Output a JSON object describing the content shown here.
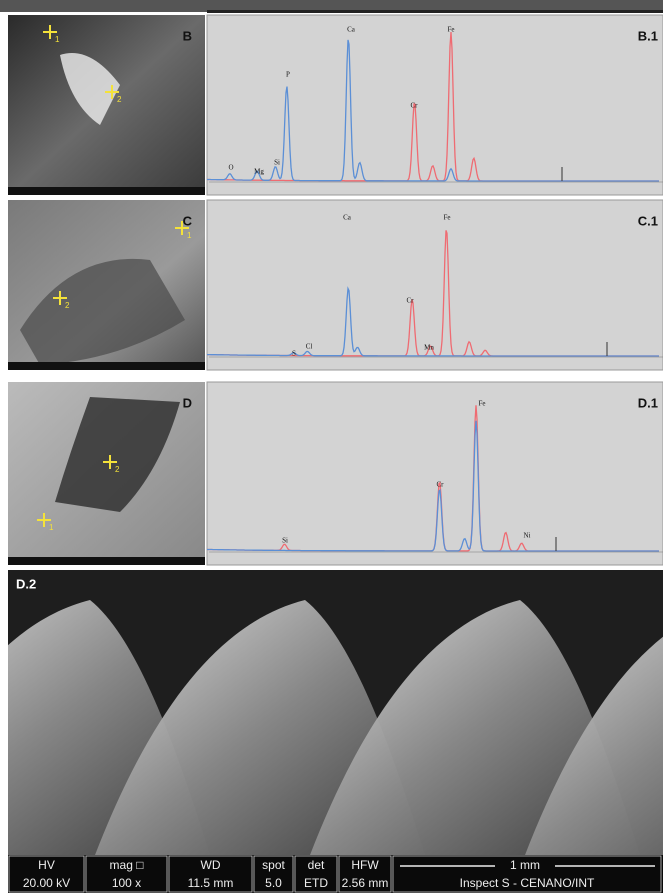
{
  "panels": [
    {
      "label": "B",
      "spectrum_label": "B.1",
      "points": [
        "1",
        "2"
      ],
      "peaks": [
        "O",
        "Mg",
        "Si",
        "P",
        "Ca",
        "Cr",
        "Fe"
      ]
    },
    {
      "label": "C",
      "spectrum_label": "C.1",
      "points": [
        "1",
        "2"
      ],
      "peaks": [
        "S",
        "Cl",
        "Ca",
        "Cr",
        "Mn",
        "Fe"
      ]
    },
    {
      "label": "D",
      "spectrum_label": "D.1",
      "points": [
        "1",
        "2"
      ],
      "peaks": [
        "Si",
        "Cr",
        "Fe",
        "Ni"
      ]
    }
  ],
  "d2": {
    "label": "D.2",
    "info_bar": {
      "headers": [
        "HV",
        "mag □",
        "WD",
        "spot",
        "det",
        "HFW"
      ],
      "values": [
        "20.00 kV",
        "100 x",
        "11.5 mm",
        "5.0",
        "ETD",
        "2.56 mm"
      ],
      "scale": "1 mm",
      "instrument": "Inspect S - CENANO/INT"
    }
  }
}
